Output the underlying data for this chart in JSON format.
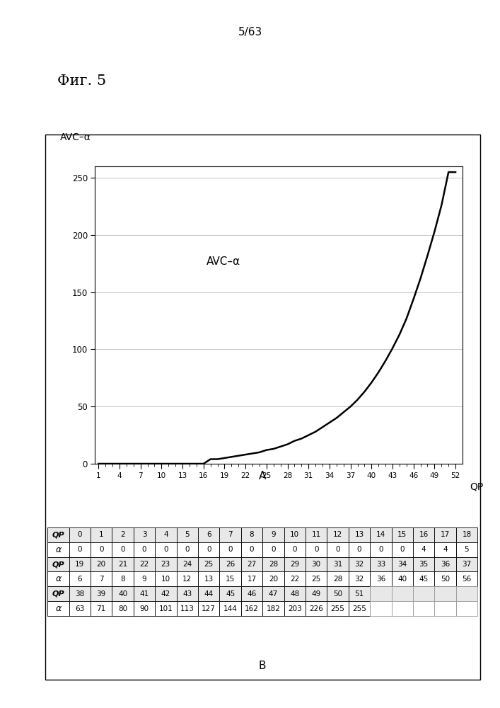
{
  "page_label": "5/63",
  "fig_label": "Фиг. 5",
  "chart_title_y": "AVC–α",
  "chart_label_mid": "AVC–α",
  "xlabel": "QP",
  "sublabel_A": "A",
  "sublabel_B": "B",
  "yticks": [
    0,
    50,
    100,
    150,
    200,
    250
  ],
  "xtick_labels": [
    "1",
    "4",
    "7",
    "10",
    "13",
    "16",
    "19",
    "22",
    "25",
    "28",
    "31",
    "34",
    "37",
    "40",
    "43",
    "46",
    "49",
    "52"
  ],
  "qp_values": [
    0,
    1,
    2,
    3,
    4,
    5,
    6,
    7,
    8,
    9,
    10,
    11,
    12,
    13,
    14,
    15,
    16,
    17,
    18,
    19,
    20,
    21,
    22,
    23,
    24,
    25,
    26,
    27,
    28,
    29,
    30,
    31,
    32,
    33,
    34,
    35,
    36,
    37,
    38,
    39,
    40,
    41,
    42,
    43,
    44,
    45,
    46,
    47,
    48,
    49,
    50,
    51
  ],
  "alpha_values": [
    0,
    0,
    0,
    0,
    0,
    0,
    0,
    0,
    0,
    0,
    0,
    0,
    0,
    0,
    0,
    0,
    4,
    4,
    5,
    6,
    7,
    8,
    9,
    10,
    12,
    13,
    15,
    17,
    20,
    22,
    25,
    28,
    32,
    36,
    40,
    45,
    50,
    56,
    63,
    71,
    80,
    90,
    101,
    113,
    127,
    144,
    162,
    182,
    203,
    226,
    255,
    255
  ],
  "table_row1_qp": [
    "QP",
    "0",
    "1",
    "2",
    "3",
    "4",
    "5",
    "6",
    "7",
    "8",
    "9",
    "10",
    "11",
    "12",
    "13",
    "14",
    "15",
    "16",
    "17",
    "18"
  ],
  "table_row1_alpha": [
    "α",
    "0",
    "0",
    "0",
    "0",
    "0",
    "0",
    "0",
    "0",
    "0",
    "0",
    "0",
    "0",
    "0",
    "0",
    "0",
    "0",
    "4",
    "4",
    "5"
  ],
  "table_row2_qp": [
    "QP",
    "19",
    "20",
    "21",
    "22",
    "23",
    "24",
    "25",
    "26",
    "27",
    "28",
    "29",
    "30",
    "31",
    "32",
    "33",
    "34",
    "35",
    "36",
    "37"
  ],
  "table_row2_alpha": [
    "α",
    "6",
    "7",
    "8",
    "9",
    "10",
    "12",
    "13",
    "15",
    "17",
    "20",
    "22",
    "25",
    "28",
    "32",
    "36",
    "40",
    "45",
    "50",
    "56"
  ],
  "table_row3_qp": [
    "QP",
    "38",
    "39",
    "40",
    "41",
    "42",
    "43",
    "44",
    "45",
    "46",
    "47",
    "48",
    "49",
    "50",
    "51",
    "",
    "",
    "",
    "",
    ""
  ],
  "table_row3_alpha": [
    "α",
    "63",
    "71",
    "80",
    "90",
    "101",
    "113",
    "127",
    "144",
    "162",
    "182",
    "203",
    "226",
    "255",
    "255",
    "",
    "",
    "",
    "",
    ""
  ],
  "background_color": "#ffffff",
  "line_color": "#000000"
}
